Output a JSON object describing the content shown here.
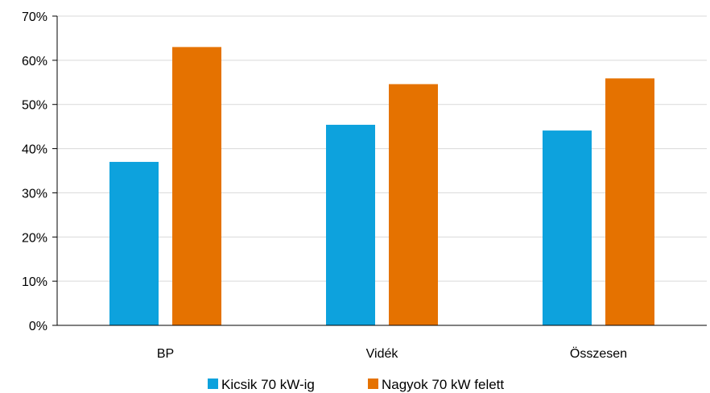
{
  "chart_data": {
    "type": "bar",
    "categories": [
      "BP",
      "Vidék",
      "Összesen"
    ],
    "series": [
      {
        "name": "Kicsik 70 kW-ig",
        "values": [
          37,
          45.4,
          44.1
        ],
        "color": "#0da2dd"
      },
      {
        "name": "Nagyok 70 kW felett",
        "values": [
          63,
          54.6,
          55.9
        ],
        "color": "#e57200"
      }
    ],
    "yticks": [
      "0%",
      "10%",
      "20%",
      "30%",
      "40%",
      "50%",
      "60%",
      "70%"
    ],
    "ylim": [
      0,
      70
    ],
    "ystep": 10,
    "grid": true,
    "legend": "bottom"
  }
}
